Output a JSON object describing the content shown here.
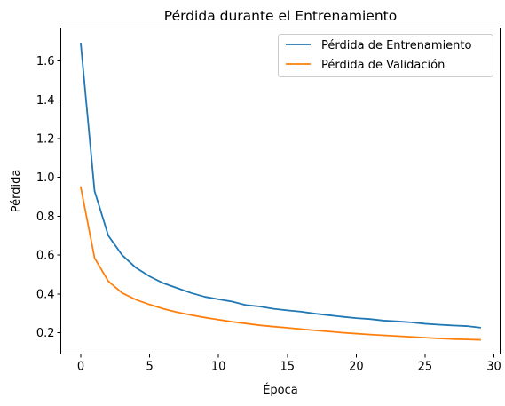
{
  "chart_data": {
    "type": "line",
    "title": "Pérdida durante el Entrenamiento",
    "xlabel": "Época",
    "ylabel": "Pérdida",
    "xlim": [
      -1.45,
      30.45
    ],
    "ylim": [
      0.09,
      1.77
    ],
    "xticks": [
      0,
      5,
      10,
      15,
      20,
      25,
      30
    ],
    "yticks": [
      0.2,
      0.4,
      0.6,
      0.8,
      1.0,
      1.2,
      1.4,
      1.6
    ],
    "ytick_labels": [
      "0.2",
      "0.4",
      "0.6",
      "0.8",
      "1.0",
      "1.2",
      "1.4",
      "1.6"
    ],
    "grid": false,
    "legend_position": "top-right",
    "x": [
      0,
      1,
      2,
      3,
      4,
      5,
      6,
      7,
      8,
      9,
      10,
      11,
      12,
      13,
      14,
      15,
      16,
      17,
      18,
      19,
      20,
      21,
      22,
      23,
      24,
      25,
      26,
      27,
      28,
      29
    ],
    "series": [
      {
        "name": "Pérdida de Entrenamiento",
        "color": "#1f77b4",
        "values": [
          1.69,
          0.93,
          0.7,
          0.6,
          0.535,
          0.49,
          0.455,
          0.43,
          0.405,
          0.385,
          0.372,
          0.36,
          0.342,
          0.335,
          0.323,
          0.315,
          0.308,
          0.298,
          0.29,
          0.282,
          0.275,
          0.27,
          0.262,
          0.258,
          0.253,
          0.246,
          0.241,
          0.237,
          0.234,
          0.226
        ]
      },
      {
        "name": "Pérdida de Validación",
        "color": "#ff7f0e",
        "values": [
          0.95,
          0.585,
          0.465,
          0.405,
          0.37,
          0.345,
          0.323,
          0.305,
          0.291,
          0.278,
          0.267,
          0.256,
          0.247,
          0.238,
          0.231,
          0.225,
          0.218,
          0.212,
          0.206,
          0.2,
          0.195,
          0.19,
          0.186,
          0.182,
          0.178,
          0.174,
          0.17,
          0.167,
          0.165,
          0.163
        ]
      }
    ]
  }
}
